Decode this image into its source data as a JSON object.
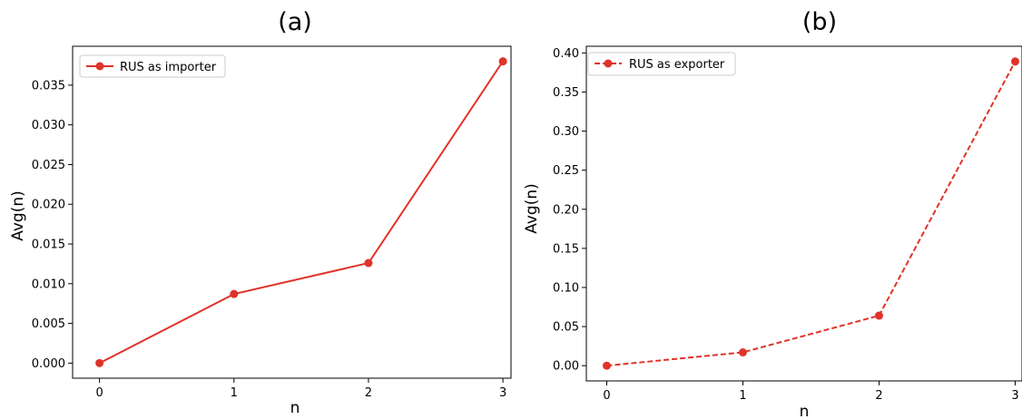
{
  "chart_data": [
    {
      "type": "line",
      "title": "(a)",
      "xlabel": "n",
      "ylabel": "Avg(n)",
      "xlim": [
        -0.2,
        3.06
      ],
      "ylim": [
        -0.0019,
        0.0399
      ],
      "xticks": [
        "0",
        "1",
        "2",
        "3"
      ],
      "yticks": [
        "0.000",
        "0.005",
        "0.010",
        "0.015",
        "0.020",
        "0.025",
        "0.030",
        "0.035"
      ],
      "legend_position": "upper-left",
      "grid": false,
      "series": [
        {
          "name": "RUS as importer",
          "color": "#e0332a",
          "line_style": "solid",
          "marker": "circle",
          "x": [
            0,
            1,
            2,
            3
          ],
          "y": [
            0.0,
            0.0087,
            0.0126,
            0.038
          ]
        }
      ]
    },
    {
      "type": "line",
      "title": "(b)",
      "xlabel": "n",
      "ylabel": "Avg(n)",
      "xlim": [
        -0.15,
        3.05
      ],
      "ylim": [
        -0.0195,
        0.4085
      ],
      "xticks": [
        "0",
        "1",
        "2",
        "3"
      ],
      "yticks": [
        "0.00",
        "0.05",
        "0.10",
        "0.15",
        "0.20",
        "0.25",
        "0.30",
        "0.35",
        "0.40"
      ],
      "legend_position": "upper-left",
      "grid": false,
      "series": [
        {
          "name": "RUS as exporter",
          "color": "#e0332a",
          "line_style": "dashed",
          "marker": "circle",
          "x": [
            0,
            1,
            2,
            3
          ],
          "y": [
            0.0,
            0.017,
            0.064,
            0.389
          ]
        }
      ]
    }
  ]
}
